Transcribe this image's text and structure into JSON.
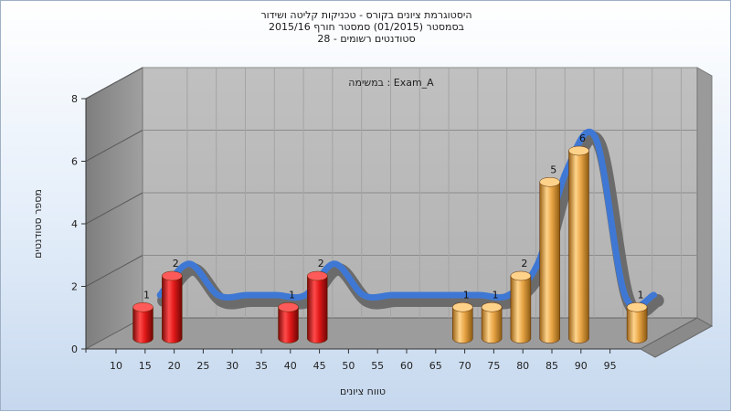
{
  "chart_data": {
    "type": "bar",
    "title_lines": [
      "היסטוגרמת ציונים בקורס - טכניקות קליטה ושידור",
      "בסמסטר  (01/2015)  סמסטר חורף 2015/16",
      "סטודנטים רשומים - 28"
    ],
    "annotation": "Exam_A : במשימה",
    "xlabel": "טווח ציונים",
    "ylabel": "מספר סטודנטים",
    "categories": [
      "10",
      "15",
      "20",
      "25",
      "30",
      "35",
      "40",
      "45",
      "50",
      "55",
      "60",
      "65",
      "70",
      "75",
      "80",
      "85",
      "90",
      "95"
    ],
    "values": [
      1,
      2,
      0,
      0,
      0,
      1,
      2,
      0,
      0,
      0,
      0,
      1,
      1,
      2,
      5,
      6,
      0,
      1
    ],
    "bar_colors": [
      "red",
      "red",
      "",
      "",
      "",
      "red",
      "red",
      "",
      "",
      "",
      "",
      "orange",
      "orange",
      "orange",
      "orange",
      "orange",
      "",
      "orange"
    ],
    "colors": {
      "red": "#e01818",
      "orange": "#e8a545",
      "curve": "#3f78d4",
      "curve_shadow": "#6b6b6b"
    },
    "ylim": [
      0,
      8
    ],
    "yticks": [
      0,
      2,
      4,
      6,
      8
    ],
    "grid": true
  }
}
